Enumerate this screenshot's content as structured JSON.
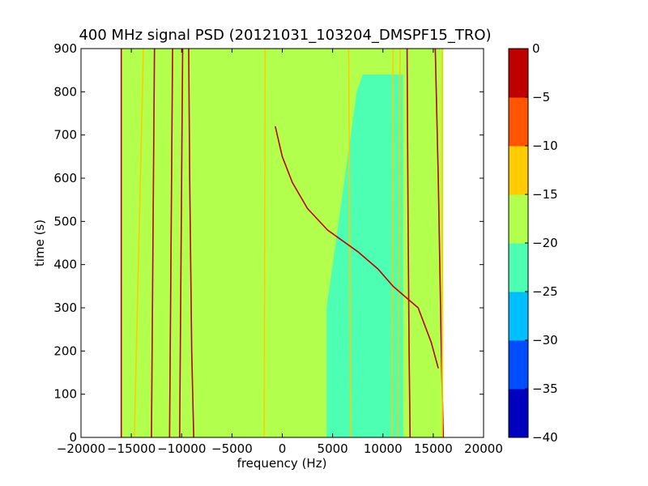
{
  "chart_data": {
    "type": "heatmap",
    "title": "400 MHz signal PSD (20121031_103204_DMSPF15_TRO)",
    "xlabel": "frequency (Hz)",
    "ylabel": "time (s)",
    "xlim": [
      -20000,
      20000
    ],
    "ylim": [
      0,
      900
    ],
    "xticks": [
      -20000,
      -15000,
      -10000,
      -5000,
      0,
      5000,
      10000,
      15000,
      20000
    ],
    "xtick_labels": [
      "−20000",
      "−15000",
      "−10000",
      "−5000",
      "0",
      "5000",
      "10000",
      "15000",
      "20000"
    ],
    "yticks": [
      0,
      100,
      200,
      300,
      400,
      500,
      600,
      700,
      800,
      900
    ],
    "ytick_labels": [
      "0",
      "100",
      "200",
      "300",
      "400",
      "500",
      "600",
      "700",
      "800",
      "900"
    ],
    "data_extent": {
      "freq": [
        -16000,
        16000
      ],
      "time": [
        0,
        900
      ]
    },
    "colorbar": {
      "boundaries": [
        -40,
        -35,
        -30,
        -25,
        -20,
        -15,
        -10,
        -5,
        0
      ],
      "tick_labels": [
        "−40",
        "−35",
        "−30",
        "−25",
        "−20",
        "−15",
        "−10",
        "−5",
        "0"
      ],
      "colors": [
        "#0000bf",
        "#004cff",
        "#00bfff",
        "#4dffb3",
        "#b3ff4d",
        "#ffcc00",
        "#ff5500",
        "#bf0000"
      ]
    },
    "background_level_db": -17.5,
    "quiet_band": {
      "level_db": -22.5,
      "freq_start": [
        4400,
        4400,
        6200,
        7400,
        8000
      ],
      "time": [
        0,
        300,
        600,
        800,
        840
      ],
      "freq_end": 12000
    },
    "carrier_lines": [
      {
        "level_db": -2.5,
        "freq": [
          -16000,
          -16000
        ],
        "time": [
          0,
          900
        ]
      },
      {
        "level_db": -12.5,
        "freq": [
          -14700,
          -13800
        ],
        "time": [
          0,
          900
        ]
      },
      {
        "level_db": -2.5,
        "freq": [
          -13000,
          -12700
        ],
        "time": [
          0,
          900
        ]
      },
      {
        "level_db": -2.5,
        "freq": [
          -11200,
          -10900
        ],
        "time": [
          0,
          900
        ]
      },
      {
        "level_db": -2.5,
        "freq": [
          -10200,
          -9900
        ],
        "time": [
          0,
          900
        ]
      },
      {
        "level_db": -2.5,
        "freq": [
          -8800,
          -9000,
          -9200,
          -9300
        ],
        "time": [
          0,
          200,
          600,
          900
        ]
      },
      {
        "level_db": -12.5,
        "freq": [
          -1800,
          -1700
        ],
        "time": [
          0,
          900
        ]
      },
      {
        "level_db": -12.5,
        "freq": [
          6800,
          6600
        ],
        "time": [
          0,
          900
        ]
      },
      {
        "level_db": -12.5,
        "freq": [
          10900,
          11000
        ],
        "time": [
          0,
          900
        ]
      },
      {
        "level_db": -12.5,
        "freq": [
          11500,
          11700
        ],
        "time": [
          0,
          900
        ]
      },
      {
        "level_db": -2.5,
        "freq": [
          12700,
          12600,
          12500,
          12400
        ],
        "time": [
          0,
          200,
          500,
          900
        ]
      },
      {
        "level_db": -2.5,
        "freq": [
          16000,
          15800,
          15500,
          15200
        ],
        "time": [
          0,
          200,
          600,
          900
        ]
      },
      {
        "level_db": -12.5,
        "freq": [
          15900,
          15900
        ],
        "time": [
          0,
          900
        ]
      }
    ],
    "doppler_trace": {
      "level_db": -2.5,
      "points": [
        [
          -700,
          720
        ],
        [
          0,
          650
        ],
        [
          1000,
          590
        ],
        [
          2500,
          530
        ],
        [
          4500,
          480
        ],
        [
          7500,
          430
        ],
        [
          9500,
          390
        ],
        [
          11000,
          350
        ],
        [
          12500,
          320
        ],
        [
          13500,
          300
        ],
        [
          14800,
          220
        ],
        [
          15500,
          160
        ]
      ]
    }
  }
}
